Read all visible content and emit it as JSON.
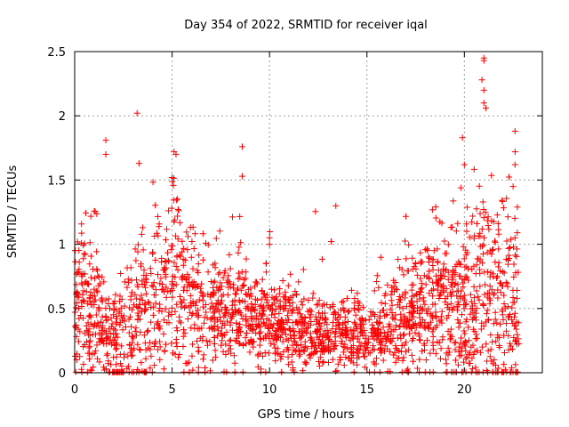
{
  "chart_data": {
    "type": "scatter",
    "title": "Day 354 of 2022, SRMTID for receiver iqal",
    "xlabel": "GPS time / hours",
    "ylabel": "SRMTID / TECUs",
    "xlim": [
      0,
      24.0
    ],
    "ylim": [
      0,
      2.5
    ],
    "xticks": [
      0,
      5,
      10,
      15,
      20
    ],
    "yticks": [
      0,
      0.5,
      1,
      1.5,
      2,
      2.5
    ],
    "xtick_labels": [
      "0",
      "5",
      "10",
      "15",
      "20"
    ],
    "ytick_labels": [
      "0",
      "0.5",
      "1",
      "1.5",
      "2",
      "2.5"
    ],
    "grid": true,
    "marker": "+",
    "color": "#ff0000",
    "envelope_hours": [
      0,
      1,
      2,
      3,
      4,
      5,
      6,
      7,
      8,
      9,
      10,
      11,
      12,
      13,
      14,
      15,
      16,
      17,
      18,
      19,
      20,
      21,
      22,
      22.8
    ],
    "envelope_median": [
      0.55,
      0.5,
      0.25,
      0.35,
      0.55,
      0.75,
      0.55,
      0.45,
      0.45,
      0.42,
      0.4,
      0.35,
      0.32,
      0.28,
      0.3,
      0.3,
      0.32,
      0.45,
      0.5,
      0.55,
      0.55,
      0.6,
      0.6,
      0.5
    ],
    "envelope_spread": [
      0.3,
      0.3,
      0.25,
      0.3,
      0.35,
      0.35,
      0.3,
      0.22,
      0.22,
      0.18,
      0.16,
      0.15,
      0.14,
      0.13,
      0.14,
      0.15,
      0.16,
      0.25,
      0.3,
      0.3,
      0.35,
      0.4,
      0.4,
      0.35
    ],
    "notable_points": [
      {
        "x": 1.6,
        "y": 1.81
      },
      {
        "x": 1.6,
        "y": 1.7
      },
      {
        "x": 3.2,
        "y": 2.02
      },
      {
        "x": 3.3,
        "y": 1.63
      },
      {
        "x": 5.1,
        "y": 1.72
      },
      {
        "x": 5.2,
        "y": 1.7
      },
      {
        "x": 8.6,
        "y": 1.76
      },
      {
        "x": 8.6,
        "y": 1.53
      },
      {
        "x": 10.0,
        "y": 1.05
      },
      {
        "x": 10.0,
        "y": 1.0
      },
      {
        "x": 19.9,
        "y": 1.83
      },
      {
        "x": 20.0,
        "y": 1.62
      },
      {
        "x": 21.0,
        "y": 2.45
      },
      {
        "x": 21.0,
        "y": 2.43
      },
      {
        "x": 20.9,
        "y": 2.28
      },
      {
        "x": 21.0,
        "y": 2.2
      },
      {
        "x": 21.0,
        "y": 2.1
      },
      {
        "x": 21.1,
        "y": 2.06
      },
      {
        "x": 22.6,
        "y": 1.88
      },
      {
        "x": 22.6,
        "y": 1.72
      },
      {
        "x": 22.6,
        "y": 1.62
      },
      {
        "x": 22.5,
        "y": 1.45
      }
    ],
    "n_points": 2200,
    "seed": 354
  }
}
